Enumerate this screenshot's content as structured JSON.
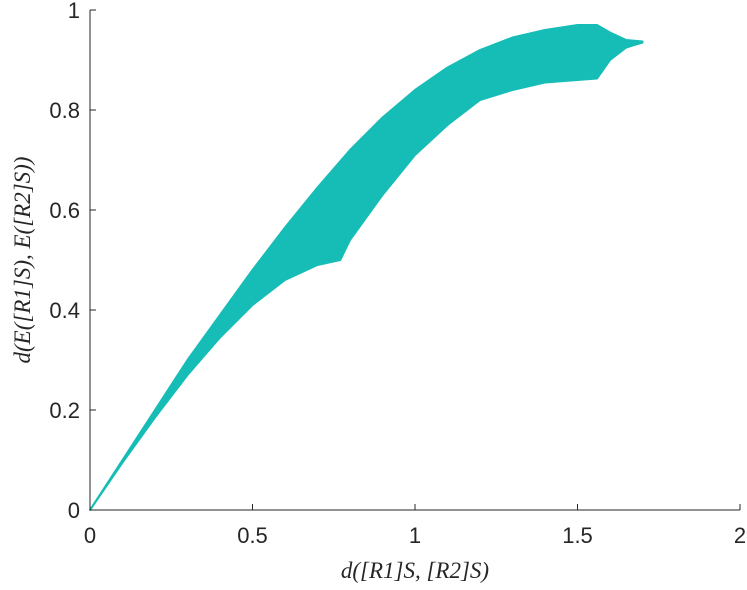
{
  "chart_data": {
    "type": "area",
    "title": "",
    "xlabel": "d([R1]S, [R2]S)",
    "ylabel": "d(E([R1]S), E([R2]S))",
    "xlim": [
      0,
      2
    ],
    "ylim": [
      0,
      1
    ],
    "x_ticks": [
      "0",
      "0.5",
      "1",
      "1.5",
      "2"
    ],
    "y_ticks": [
      "0",
      "0.2",
      "0.4",
      "0.6",
      "0.8",
      "1"
    ],
    "grid": false,
    "legend": "none",
    "color": "#16BDB6",
    "upper_boundary": [
      {
        "x": 0.0,
        "y": 0.0
      },
      {
        "x": 0.1,
        "y": 0.1
      },
      {
        "x": 0.2,
        "y": 0.2
      },
      {
        "x": 0.3,
        "y": 0.3
      },
      {
        "x": 0.4,
        "y": 0.39
      },
      {
        "x": 0.5,
        "y": 0.48
      },
      {
        "x": 0.6,
        "y": 0.565
      },
      {
        "x": 0.7,
        "y": 0.645
      },
      {
        "x": 0.8,
        "y": 0.72
      },
      {
        "x": 0.9,
        "y": 0.785
      },
      {
        "x": 1.0,
        "y": 0.84
      },
      {
        "x": 1.1,
        "y": 0.885
      },
      {
        "x": 1.2,
        "y": 0.92
      },
      {
        "x": 1.3,
        "y": 0.945
      },
      {
        "x": 1.4,
        "y": 0.96
      },
      {
        "x": 1.5,
        "y": 0.97
      },
      {
        "x": 1.56,
        "y": 0.97
      },
      {
        "x": 1.6,
        "y": 0.955
      },
      {
        "x": 1.65,
        "y": 0.94
      },
      {
        "x": 1.7,
        "y": 0.937
      }
    ],
    "lower_boundary": [
      {
        "x": 0.0,
        "y": 0.0
      },
      {
        "x": 0.1,
        "y": 0.095
      },
      {
        "x": 0.2,
        "y": 0.185
      },
      {
        "x": 0.3,
        "y": 0.27
      },
      {
        "x": 0.4,
        "y": 0.345
      },
      {
        "x": 0.5,
        "y": 0.41
      },
      {
        "x": 0.6,
        "y": 0.46
      },
      {
        "x": 0.7,
        "y": 0.49
      },
      {
        "x": 0.77,
        "y": 0.5
      },
      {
        "x": 0.8,
        "y": 0.54
      },
      {
        "x": 0.9,
        "y": 0.63
      },
      {
        "x": 1.0,
        "y": 0.71
      },
      {
        "x": 1.1,
        "y": 0.77
      },
      {
        "x": 1.2,
        "y": 0.82
      },
      {
        "x": 1.3,
        "y": 0.84
      },
      {
        "x": 1.4,
        "y": 0.855
      },
      {
        "x": 1.5,
        "y": 0.86
      },
      {
        "x": 1.56,
        "y": 0.863
      },
      {
        "x": 1.6,
        "y": 0.9
      },
      {
        "x": 1.65,
        "y": 0.925
      },
      {
        "x": 1.7,
        "y": 0.935
      }
    ]
  }
}
